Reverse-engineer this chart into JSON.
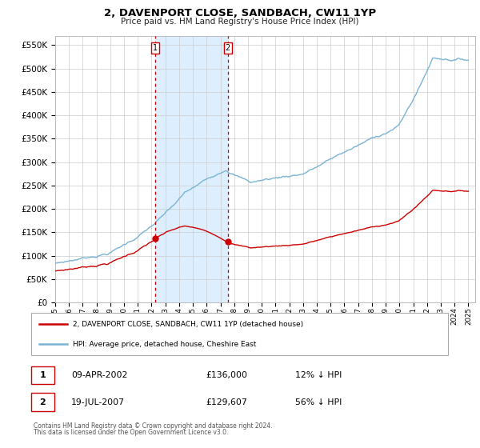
{
  "title": "2, DAVENPORT CLOSE, SANDBACH, CW11 1YP",
  "subtitle": "Price paid vs. HM Land Registry's House Price Index (HPI)",
  "legend_line1": "2, DAVENPORT CLOSE, SANDBACH, CW11 1YP (detached house)",
  "legend_line2": "HPI: Average price, detached house, Cheshire East",
  "table_rows": [
    {
      "num": "1",
      "date": "09-APR-2002",
      "price": "£136,000",
      "hpi": "12% ↓ HPI"
    },
    {
      "num": "2",
      "date": "19-JUL-2007",
      "price": "£129,607",
      "hpi": "56% ↓ HPI"
    }
  ],
  "footnote1": "Contains HM Land Registry data © Crown copyright and database right 2024.",
  "footnote2": "This data is licensed under the Open Government Licence v3.0.",
  "sale1_year": 2002.27,
  "sale1_price": 136000,
  "sale2_year": 2007.54,
  "sale2_price": 129607,
  "hpi_color": "#7ab3d4",
  "hpi_fill_color": "#ddeeff",
  "price_color": "#cc0000",
  "vline_color": "#cc0000",
  "bg_color": "#ffffff",
  "grid_color": "#cccccc",
  "ylim_min": 0,
  "ylim_max": 570000,
  "xlim_min": 1995,
  "xlim_max": 2025.5,
  "yticks": [
    0,
    50000,
    100000,
    150000,
    200000,
    250000,
    300000,
    350000,
    400000,
    450000,
    500000,
    550000
  ],
  "xticks": [
    1995,
    1996,
    1997,
    1998,
    1999,
    2000,
    2001,
    2002,
    2003,
    2004,
    2005,
    2006,
    2007,
    2008,
    2009,
    2010,
    2011,
    2012,
    2013,
    2014,
    2015,
    2016,
    2017,
    2018,
    2019,
    2020,
    2021,
    2022,
    2023,
    2024,
    2025
  ]
}
